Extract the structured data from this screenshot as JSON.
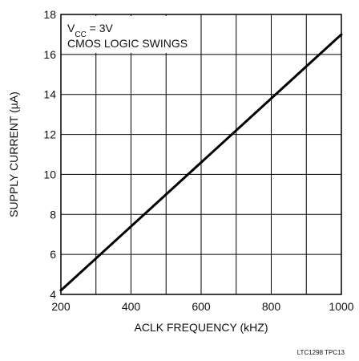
{
  "chart_data": {
    "type": "line",
    "title": "",
    "xlabel": "ACLK FREQUENCY (kHZ)",
    "ylabel": "SUPPLY CURRENT (µA)",
    "xlim": [
      200,
      1000
    ],
    "ylim": [
      4,
      18
    ],
    "x_ticks": [
      200,
      400,
      600,
      800,
      1000
    ],
    "y_ticks": [
      4,
      6,
      8,
      10,
      12,
      14,
      16,
      18
    ],
    "grid": true,
    "series": [
      {
        "x": [
          200,
          1000
        ],
        "y": [
          4.2,
          17.0
        ]
      }
    ],
    "annotation": {
      "line1_prefix": "V",
      "line1_sub": "CC",
      "line1_suffix": " = 3V",
      "line2": "CMOS LOGIC SWINGS"
    },
    "code": "LTC1298 TPC13"
  }
}
